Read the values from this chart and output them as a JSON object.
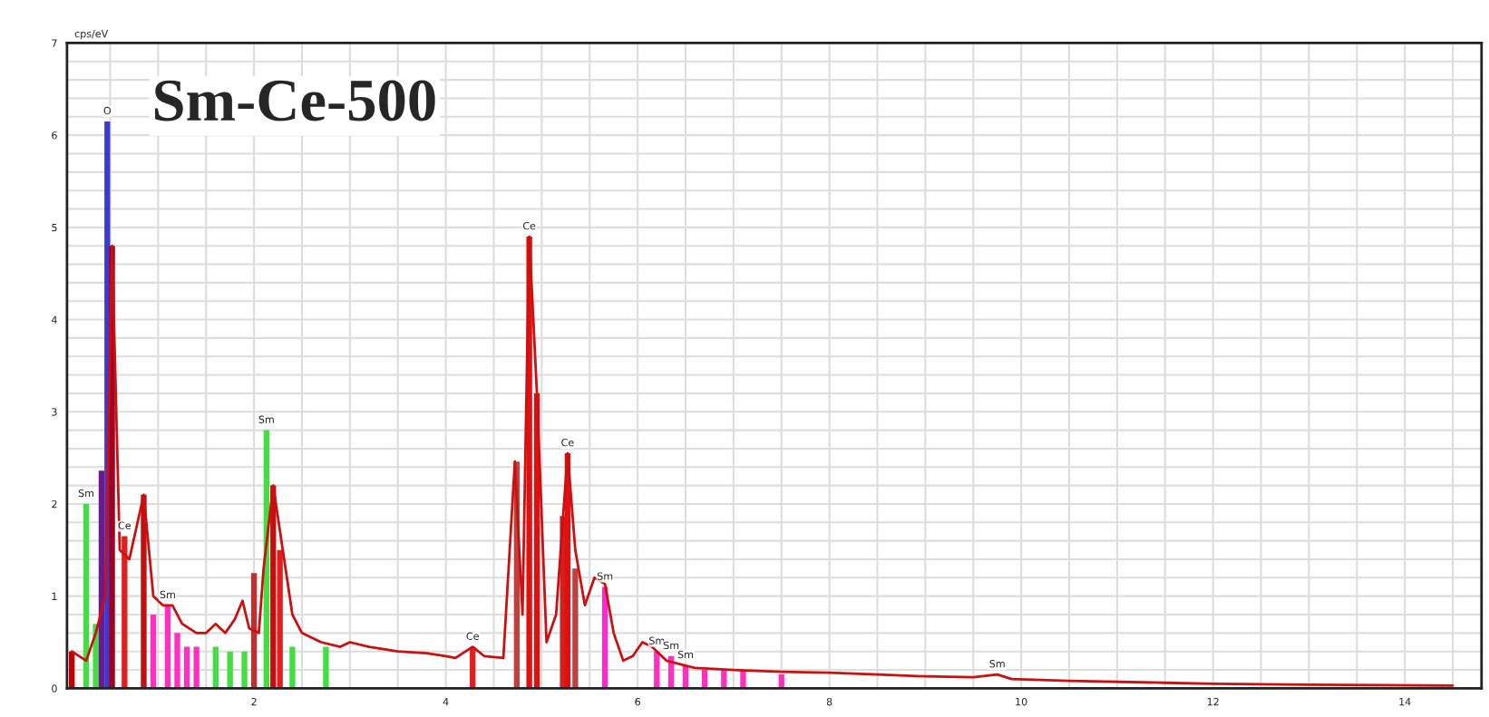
{
  "chart_data": {
    "type": "line",
    "title": "Sm-Ce-500",
    "ylabel": "cps/eV",
    "xlim": [
      0.05,
      14.8
    ],
    "xticks": [
      2,
      4,
      6,
      8,
      10,
      12,
      14
    ],
    "ylim": [
      0,
      7
    ],
    "yticks": [
      0,
      1,
      2,
      3,
      4,
      5,
      6,
      7
    ],
    "grid": true,
    "marker": "none",
    "line_style": "solid",
    "series": [
      {
        "type": "bar",
        "x": [
          0.1,
          0.25,
          0.35,
          0.41,
          0.47,
          0.52,
          0.65,
          0.85,
          0.95,
          1.1,
          1.2,
          1.3,
          1.4,
          1.6,
          1.75,
          1.9,
          2.0,
          2.13,
          2.2,
          2.27,
          2.4,
          2.75,
          4.28,
          4.74,
          4.87,
          4.95,
          5.22,
          5.27,
          5.35,
          5.66,
          6.2,
          6.35,
          6.5,
          6.7,
          6.9,
          7.1,
          7.5
        ],
        "values": [
          0.4,
          2.0,
          0.7,
          2.36,
          6.15,
          4.8,
          1.65,
          2.1,
          0.8,
          0.9,
          0.6,
          0.45,
          0.45,
          0.45,
          0.4,
          0.4,
          1.25,
          2.8,
          2.2,
          1.5,
          0.45,
          0.45,
          0.45,
          2.46,
          4.9,
          3.2,
          1.87,
          2.55,
          1.3,
          1.1,
          0.4,
          0.35,
          0.25,
          0.2,
          0.2,
          0.2,
          0.15
        ],
        "colors": [
          "#c00000",
          "#44dd44",
          "#44dd44",
          "#6a1a8a",
          "#3a3ad0",
          "#a00020",
          "#e02020",
          "#c01010",
          "#ff30c0",
          "#ff30c0",
          "#ff30c0",
          "#ff30c0",
          "#ff30c0",
          "#44dd44",
          "#44dd44",
          "#44dd44",
          "#c03030",
          "#44dd44",
          "#c01010",
          "#e02020",
          "#44dd44",
          "#44dd44",
          "#e02020",
          "#c04040",
          "#e01010",
          "#e01010",
          "#d02020",
          "#e01010",
          "#c04040",
          "#ee30cc",
          "#ff30c0",
          "#ff30c0",
          "#ff30c0",
          "#ff30c0",
          "#ff30c0",
          "#ff30c0",
          "#ff30c0"
        ]
      },
      {
        "color": "#cc1010",
        "x": [
          0.1,
          0.25,
          0.35,
          0.45,
          0.52,
          0.6,
          0.7,
          0.85,
          0.95,
          1.05,
          1.15,
          1.25,
          1.4,
          1.5,
          1.6,
          1.7,
          1.8,
          1.88,
          1.95,
          2.05,
          2.1,
          2.2,
          2.3,
          2.4,
          2.5,
          2.7,
          2.9,
          3.0,
          3.2,
          3.5,
          3.8,
          4.0,
          4.1,
          4.28,
          4.4,
          4.6,
          4.72,
          4.8,
          4.87,
          4.95,
          5.05,
          5.15,
          5.27,
          5.35,
          5.45,
          5.55,
          5.66,
          5.75,
          5.85,
          5.95,
          6.05,
          6.15,
          6.3,
          6.6,
          7.0,
          7.5,
          8.0,
          8.5,
          9.0,
          9.5,
          9.75,
          9.9,
          10.5,
          11.5,
          12.0,
          13.0,
          14.5
        ],
        "values": [
          0.4,
          0.3,
          0.6,
          1.0,
          4.8,
          1.5,
          1.4,
          2.1,
          1.0,
          0.9,
          0.9,
          0.7,
          0.6,
          0.6,
          0.7,
          0.6,
          0.75,
          0.95,
          0.65,
          0.6,
          1.3,
          2.2,
          1.5,
          0.8,
          0.6,
          0.5,
          0.45,
          0.5,
          0.45,
          0.4,
          0.38,
          0.35,
          0.33,
          0.45,
          0.35,
          0.33,
          2.46,
          0.8,
          4.9,
          3.2,
          0.5,
          0.8,
          2.55,
          1.5,
          0.9,
          1.2,
          1.13,
          0.6,
          0.3,
          0.35,
          0.5,
          0.45,
          0.3,
          0.22,
          0.2,
          0.18,
          0.17,
          0.15,
          0.13,
          0.12,
          0.15,
          0.1,
          0.08,
          0.06,
          0.05,
          0.04,
          0.03
        ]
      }
    ],
    "annotations": [
      {
        "text": "O",
        "x": 0.47,
        "y": 6.15
      },
      {
        "text": "Sm",
        "x": 0.25,
        "y": 2.0
      },
      {
        "text": "Ce",
        "x": 0.65,
        "y": 1.65
      },
      {
        "text": "Sm",
        "x": 1.1,
        "y": 0.9
      },
      {
        "text": "Sm",
        "x": 2.13,
        "y": 2.8
      },
      {
        "text": "Ce",
        "x": 4.28,
        "y": 0.45
      },
      {
        "text": "Ce",
        "x": 4.87,
        "y": 4.9
      },
      {
        "text": "Ce",
        "x": 5.27,
        "y": 2.55
      },
      {
        "text": "Sm",
        "x": 5.66,
        "y": 1.1
      },
      {
        "text": "Sm",
        "x": 6.2,
        "y": 0.4
      },
      {
        "text": "Sm",
        "x": 6.35,
        "y": 0.35
      },
      {
        "text": "Sm",
        "x": 6.5,
        "y": 0.25
      },
      {
        "text": "Sm",
        "x": 9.75,
        "y": 0.15
      }
    ]
  }
}
